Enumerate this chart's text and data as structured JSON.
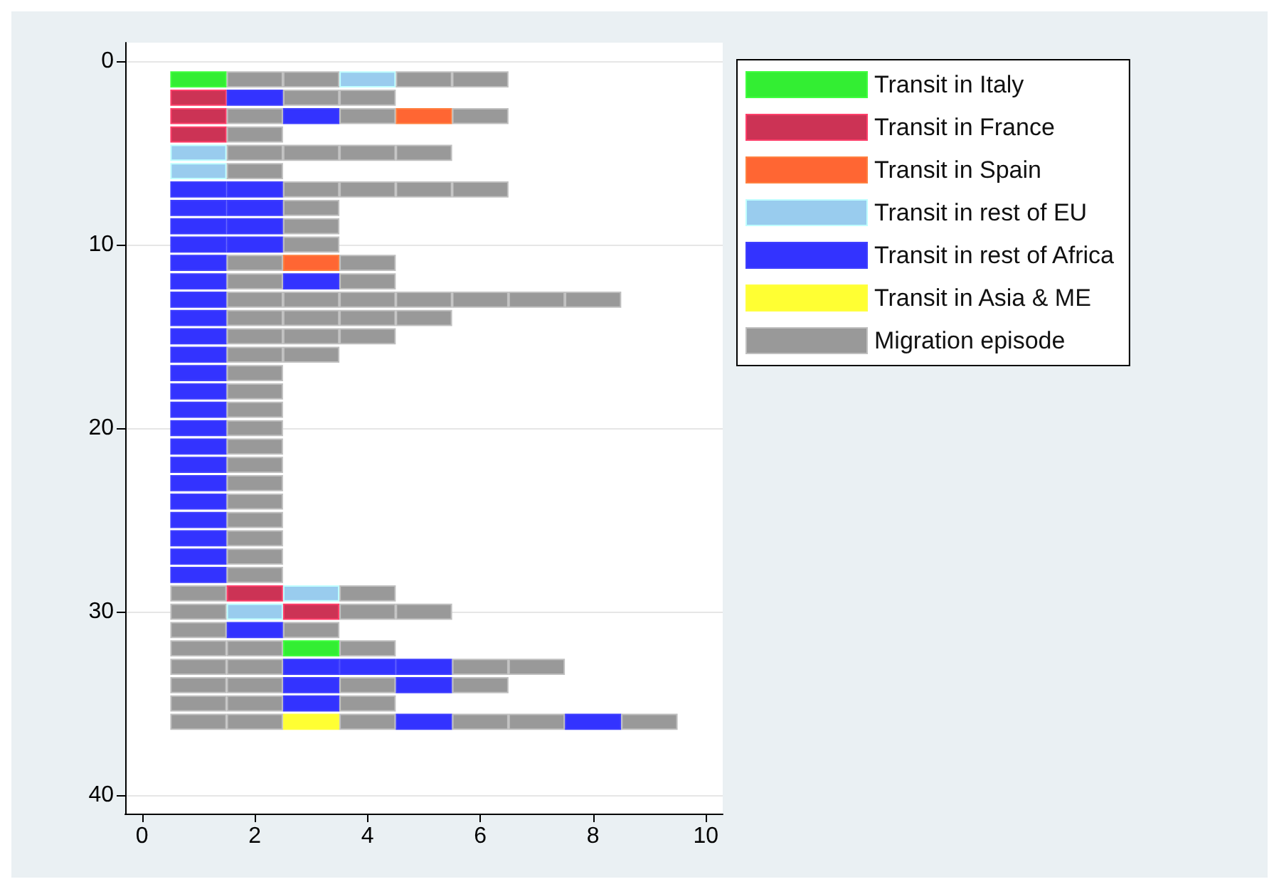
{
  "chart_data": {
    "type": "bar",
    "orientation": "horizontal",
    "x": [
      1,
      2,
      3,
      4,
      5,
      6,
      7,
      8,
      9,
      10,
      11,
      12,
      13,
      14,
      15,
      16,
      17,
      18,
      19,
      20,
      21,
      22,
      23,
      24,
      25,
      26,
      27,
      28,
      29,
      30,
      31,
      32,
      33,
      34,
      35,
      36
    ],
    "xlim": [
      -0.3,
      10.3
    ],
    "xticks": [
      0,
      2,
      4,
      6,
      8,
      10
    ],
    "ylim": [
      41,
      -1
    ],
    "yticks": [
      0,
      10,
      20,
      30,
      40
    ],
    "grid": "y",
    "legend": "right",
    "series": [
      {
        "values": [
          1,
          1,
          1,
          1,
          1,
          1,
          1,
          1,
          1,
          1,
          1,
          1,
          1,
          1,
          1,
          1,
          1,
          1,
          1,
          1,
          1,
          1,
          1,
          1,
          1,
          1,
          1,
          1,
          1,
          1,
          1,
          1,
          1,
          1,
          1,
          1
        ],
        "base": [
          0.5,
          0.5,
          0.5,
          0.5,
          0.5,
          0.5,
          0.5,
          0.5,
          0.5,
          0.5,
          0.5,
          0.5,
          0.5,
          0.5,
          0.5,
          0.5,
          0.5,
          0.5,
          0.5,
          0.5,
          0.5,
          0.5,
          0.5,
          0.5,
          0.5,
          0.5,
          0.5,
          0.5,
          0.5,
          0.5,
          0.5,
          0.5,
          0.5,
          0.5,
          0.5,
          0.5
        ],
        "colors": [
          "#33ee33",
          "#cc3355",
          "#cc3355",
          "#cc3355",
          "#99ccee",
          "#99ccee",
          "#3333ff",
          "#3333ff",
          "#3333ff",
          "#3333ff",
          "#3333ff",
          "#3333ff",
          "#3333ff",
          "#3333ff",
          "#3333ff",
          "#3333ff",
          "#3333ff",
          "#3333ff",
          "#3333ff",
          "#3333ff",
          "#3333ff",
          "#3333ff",
          "#3333ff",
          "#3333ff",
          "#3333ff",
          "#3333ff",
          "#3333ff",
          "#3333ff",
          "#999999",
          "#999999",
          "#999999",
          "#999999",
          "#999999",
          "#999999",
          "#999999",
          "#999999"
        ]
      },
      {
        "values": [
          1,
          1,
          1,
          1,
          1,
          1,
          1,
          1,
          1,
          1,
          1,
          1,
          1,
          1,
          1,
          1,
          1,
          1,
          1,
          1,
          1,
          1,
          1,
          1,
          1,
          1,
          1,
          1,
          1,
          1,
          1,
          1,
          1,
          1,
          1,
          1
        ],
        "base": [
          1.5,
          1.5,
          1.5,
          1.5,
          1.5,
          1.5,
          1.5,
          1.5,
          1.5,
          1.5,
          1.5,
          1.5,
          1.5,
          1.5,
          1.5,
          1.5,
          1.5,
          1.5,
          1.5,
          1.5,
          1.5,
          1.5,
          1.5,
          1.5,
          1.5,
          1.5,
          1.5,
          1.5,
          1.5,
          1.5,
          1.5,
          1.5,
          1.5,
          1.5,
          1.5,
          1.5
        ],
        "colors": [
          "#999999",
          "#3333ff",
          "#999999",
          "#999999",
          "#999999",
          "#999999",
          "#3333ff",
          "#3333ff",
          "#3333ff",
          "#3333ff",
          "#999999",
          "#999999",
          "#999999",
          "#999999",
          "#999999",
          "#999999",
          "#999999",
          "#999999",
          "#999999",
          "#999999",
          "#999999",
          "#999999",
          "#999999",
          "#999999",
          "#999999",
          "#999999",
          "#999999",
          "#999999",
          "#cc3355",
          "#99ccee",
          "#3333ff",
          "#999999",
          "#999999",
          "#999999",
          "#999999",
          "#999999"
        ]
      },
      {
        "values": [
          1,
          1,
          1,
          null,
          1,
          null,
          1,
          1,
          1,
          1,
          1,
          1,
          1,
          1,
          1,
          1,
          null,
          null,
          null,
          null,
          null,
          null,
          null,
          null,
          null,
          null,
          null,
          null,
          1,
          1,
          1,
          1,
          1,
          1,
          1,
          1
        ],
        "base": [
          2.5,
          2.5,
          2.5,
          null,
          2.5,
          null,
          2.5,
          2.5,
          2.5,
          2.5,
          2.5,
          2.5,
          2.5,
          2.5,
          2.5,
          2.5,
          null,
          null,
          null,
          null,
          null,
          null,
          null,
          null,
          null,
          null,
          null,
          null,
          2.5,
          2.5,
          2.5,
          2.5,
          2.5,
          2.5,
          2.5,
          2.5
        ],
        "colors": [
          "#999999",
          "#999999",
          "#3333ff",
          null,
          "#999999",
          null,
          "#999999",
          "#999999",
          "#999999",
          "#999999",
          "#ff6633",
          "#3333ff",
          "#999999",
          "#999999",
          "#999999",
          "#999999",
          null,
          null,
          null,
          null,
          null,
          null,
          null,
          null,
          null,
          null,
          null,
          null,
          "#99ccee",
          "#cc3355",
          "#999999",
          "#33ee33",
          "#3333ff",
          "#3333ff",
          "#3333ff",
          "#ffff33"
        ]
      },
      {
        "values": [
          1,
          1,
          1,
          null,
          1,
          null,
          1,
          null,
          null,
          null,
          1,
          1,
          1,
          1,
          1,
          null,
          null,
          null,
          null,
          null,
          null,
          null,
          null,
          null,
          null,
          null,
          null,
          null,
          1,
          1,
          null,
          1,
          1,
          1,
          1,
          1
        ],
        "base": [
          3.5,
          3.5,
          3.5,
          null,
          3.5,
          null,
          3.5,
          null,
          null,
          null,
          3.5,
          3.5,
          3.5,
          3.5,
          3.5,
          null,
          null,
          null,
          null,
          null,
          null,
          null,
          null,
          null,
          null,
          null,
          null,
          null,
          3.5,
          3.5,
          null,
          3.5,
          3.5,
          3.5,
          3.5,
          3.5
        ],
        "colors": [
          "#99ccee",
          "#999999",
          "#999999",
          null,
          "#999999",
          null,
          "#999999",
          null,
          null,
          null,
          "#999999",
          "#999999",
          "#999999",
          "#999999",
          "#999999",
          null,
          null,
          null,
          null,
          null,
          null,
          null,
          null,
          null,
          null,
          null,
          null,
          null,
          "#999999",
          "#999999",
          null,
          "#999999",
          "#3333ff",
          "#999999",
          "#999999",
          "#999999"
        ]
      },
      {
        "values": [
          1,
          null,
          1,
          null,
          1,
          null,
          1,
          null,
          null,
          null,
          null,
          null,
          1,
          1,
          null,
          null,
          null,
          null,
          null,
          null,
          null,
          null,
          null,
          null,
          null,
          null,
          null,
          null,
          null,
          1,
          null,
          null,
          1,
          1,
          null,
          1
        ],
        "base": [
          4.5,
          null,
          4.5,
          null,
          4.5,
          null,
          4.5,
          null,
          null,
          null,
          null,
          null,
          4.5,
          4.5,
          null,
          null,
          null,
          null,
          null,
          null,
          null,
          null,
          null,
          null,
          null,
          null,
          null,
          null,
          null,
          4.5,
          null,
          null,
          4.5,
          4.5,
          null,
          4.5
        ],
        "colors": [
          "#999999",
          null,
          "#ff6633",
          null,
          "#999999",
          null,
          "#999999",
          null,
          null,
          null,
          null,
          null,
          "#999999",
          "#999999",
          null,
          null,
          null,
          null,
          null,
          null,
          null,
          null,
          null,
          null,
          null,
          null,
          null,
          null,
          null,
          "#999999",
          null,
          null,
          "#3333ff",
          "#3333ff",
          null,
          "#3333ff"
        ]
      },
      {
        "values": [
          1,
          null,
          1,
          null,
          null,
          null,
          1,
          null,
          null,
          null,
          null,
          null,
          1,
          null,
          null,
          null,
          null,
          null,
          null,
          null,
          null,
          null,
          null,
          null,
          null,
          null,
          null,
          null,
          null,
          null,
          null,
          null,
          1,
          1,
          null,
          1
        ],
        "base": [
          5.5,
          null,
          5.5,
          null,
          null,
          null,
          5.5,
          null,
          null,
          null,
          null,
          null,
          5.5,
          null,
          null,
          null,
          null,
          null,
          null,
          null,
          null,
          null,
          null,
          null,
          null,
          null,
          null,
          null,
          null,
          null,
          null,
          null,
          5.5,
          5.5,
          null,
          5.5
        ],
        "colors": [
          "#999999",
          null,
          "#999999",
          null,
          null,
          null,
          "#999999",
          null,
          null,
          null,
          null,
          null,
          "#999999",
          null,
          null,
          null,
          null,
          null,
          null,
          null,
          null,
          null,
          null,
          null,
          null,
          null,
          null,
          null,
          null,
          null,
          null,
          null,
          "#999999",
          "#999999",
          null,
          "#999999"
        ]
      },
      {
        "values": [
          null,
          null,
          null,
          null,
          null,
          null,
          null,
          null,
          null,
          null,
          null,
          null,
          1,
          null,
          null,
          null,
          null,
          null,
          null,
          null,
          null,
          null,
          null,
          null,
          null,
          null,
          null,
          null,
          null,
          null,
          null,
          null,
          1,
          null,
          null,
          1
        ],
        "base": [
          null,
          null,
          null,
          null,
          null,
          null,
          null,
          null,
          null,
          null,
          null,
          null,
          6.5,
          null,
          null,
          null,
          null,
          null,
          null,
          null,
          null,
          null,
          null,
          null,
          null,
          null,
          null,
          null,
          null,
          null,
          null,
          null,
          6.5,
          null,
          null,
          6.5
        ],
        "colors": [
          null,
          null,
          null,
          null,
          null,
          null,
          null,
          null,
          null,
          null,
          null,
          null,
          "#999999",
          null,
          null,
          null,
          null,
          null,
          null,
          null,
          null,
          null,
          null,
          null,
          null,
          null,
          null,
          null,
          null,
          null,
          null,
          null,
          "#999999",
          null,
          null,
          "#999999"
        ]
      },
      {
        "values": [
          null,
          null,
          null,
          null,
          null,
          null,
          null,
          null,
          null,
          null,
          null,
          null,
          1,
          null,
          null,
          null,
          null,
          null,
          null,
          null,
          null,
          null,
          null,
          null,
          null,
          null,
          null,
          null,
          null,
          null,
          null,
          null,
          null,
          null,
          null,
          1
        ],
        "base": [
          null,
          null,
          null,
          null,
          null,
          null,
          null,
          null,
          null,
          null,
          null,
          null,
          7.5,
          null,
          null,
          null,
          null,
          null,
          null,
          null,
          null,
          null,
          null,
          null,
          null,
          null,
          null,
          null,
          null,
          null,
          null,
          null,
          null,
          null,
          null,
          7.5
        ],
        "colors": [
          null,
          null,
          null,
          null,
          null,
          null,
          null,
          null,
          null,
          null,
          null,
          null,
          "#999999",
          null,
          null,
          null,
          null,
          null,
          null,
          null,
          null,
          null,
          null,
          null,
          null,
          null,
          null,
          null,
          null,
          null,
          null,
          null,
          null,
          null,
          null,
          "#3333ff"
        ]
      },
      {
        "values": [
          null,
          null,
          null,
          null,
          null,
          null,
          null,
          null,
          null,
          null,
          null,
          null,
          null,
          null,
          null,
          null,
          null,
          null,
          null,
          null,
          null,
          null,
          null,
          null,
          null,
          null,
          null,
          null,
          null,
          null,
          null,
          null,
          null,
          null,
          null,
          1
        ],
        "base": [
          null,
          null,
          null,
          null,
          null,
          null,
          null,
          null,
          null,
          null,
          null,
          null,
          null,
          null,
          null,
          null,
          null,
          null,
          null,
          null,
          null,
          null,
          null,
          null,
          null,
          null,
          null,
          null,
          null,
          null,
          null,
          null,
          null,
          null,
          null,
          8.5
        ],
        "colors": [
          null,
          null,
          null,
          null,
          null,
          null,
          null,
          null,
          null,
          null,
          null,
          null,
          null,
          null,
          null,
          null,
          null,
          null,
          null,
          null,
          null,
          null,
          null,
          null,
          null,
          null,
          null,
          null,
          null,
          null,
          null,
          null,
          null,
          null,
          null,
          "#999999"
        ]
      },
      {
        "name": "Transit in Italy",
        "color": "#33ee33",
        "values": [
          null,
          null,
          null,
          null,
          null,
          null,
          null,
          null,
          null,
          null,
          null,
          null,
          null,
          null,
          null,
          null,
          null,
          null,
          null,
          null,
          null,
          null,
          null,
          null,
          null,
          null,
          null,
          null,
          null,
          null,
          null,
          null,
          null,
          null,
          null,
          null
        ]
      },
      {
        "name": "Transit in France",
        "color": "#cc3355",
        "values": [
          null,
          null,
          null,
          null,
          null,
          null,
          null,
          null,
          null,
          null,
          null,
          null,
          null,
          null,
          null,
          null,
          null,
          null,
          null,
          null,
          null,
          null,
          null,
          null,
          null,
          null,
          null,
          null,
          null,
          null,
          null,
          null,
          null,
          null,
          null,
          null
        ]
      },
      {
        "name": "Transit in Spain",
        "color": "#ff6633",
        "values": [
          null,
          null,
          null,
          null,
          null,
          null,
          null,
          null,
          null,
          null,
          null,
          null,
          null,
          null,
          null,
          null,
          null,
          null,
          null,
          null,
          null,
          null,
          null,
          null,
          null,
          null,
          null,
          null,
          null,
          null,
          null,
          null,
          null,
          null,
          null,
          null
        ]
      },
      {
        "name": "Transit in rest of EU",
        "color": "#99ccee",
        "values": [
          null,
          null,
          null,
          null,
          null,
          null,
          null,
          null,
          null,
          null,
          null,
          null,
          null,
          null,
          null,
          null,
          null,
          null,
          null,
          null,
          null,
          null,
          null,
          null,
          null,
          null,
          null,
          null,
          null,
          null,
          null,
          null,
          null,
          null,
          null,
          null
        ]
      },
      {
        "name": "Transit in rest of Africa",
        "color": "#3333ff",
        "values": [
          null,
          null,
          null,
          null,
          null,
          null,
          null,
          null,
          null,
          null,
          null,
          null,
          null,
          null,
          null,
          null,
          null,
          null,
          null,
          null,
          null,
          null,
          null,
          null,
          null,
          null,
          null,
          null,
          null,
          null,
          null,
          null,
          null,
          null,
          null,
          null
        ]
      },
      {
        "name": "Transit in Asia & ME",
        "color": "#ffff33",
        "values": [
          null,
          null,
          null,
          null,
          null,
          null,
          null,
          null,
          null,
          null,
          null,
          null,
          null,
          null,
          null,
          null,
          null,
          null,
          null,
          null,
          null,
          null,
          null,
          null,
          null,
          null,
          null,
          null,
          null,
          null,
          null,
          null,
          null,
          null,
          null,
          null
        ]
      },
      {
        "name": "Migration episode",
        "color": "#999999",
        "values": [
          null,
          null,
          null,
          null,
          null,
          null,
          null,
          null,
          null,
          null,
          null,
          null,
          null,
          null,
          null,
          null,
          null,
          null,
          null,
          null,
          null,
          null,
          null,
          null,
          null,
          null,
          null,
          null,
          null,
          null,
          null,
          null,
          null,
          null,
          null,
          null
        ]
      }
    ]
  }
}
